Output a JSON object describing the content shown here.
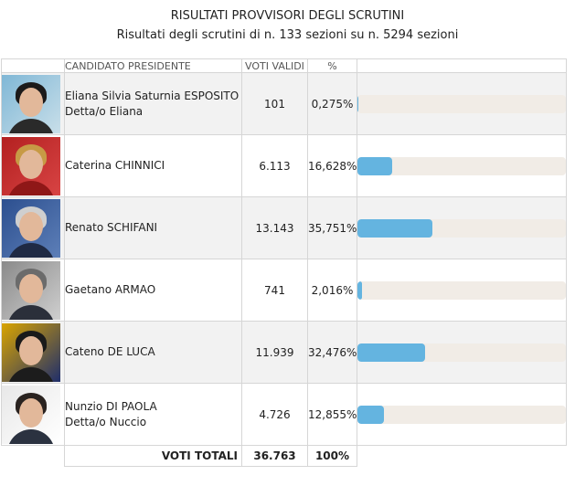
{
  "header": {
    "title": "RISULTATI PROVVISORI DEGLI SCRUTINI",
    "subtitle": "Risultati degli scrutini di n. 133 sezioni su n. 5294 sezioni"
  },
  "table": {
    "col_candidate": "CANDIDATO PRESIDENTE",
    "col_votes": "VOTI VALIDI",
    "col_pct": "%",
    "candidates": [
      {
        "name": "Eliana Silvia Saturnia ESPOSITO",
        "alias": "Detta/o Eliana",
        "votes": "101",
        "pct": "0,275%",
        "share": 0.275
      },
      {
        "name": "Caterina CHINNICI",
        "alias": "",
        "votes": "6.113",
        "pct": "16,628%",
        "share": 16.628
      },
      {
        "name": "Renato SCHIFANI",
        "alias": "",
        "votes": "13.143",
        "pct": "35,751%",
        "share": 35.751
      },
      {
        "name": "Gaetano ARMAO",
        "alias": "",
        "votes": "741",
        "pct": "2,016%",
        "share": 2.016
      },
      {
        "name": "Cateno DE LUCA",
        "alias": "",
        "votes": "11.939",
        "pct": "32,476%",
        "share": 32.476
      },
      {
        "name": "Nunzio DI PAOLA",
        "alias": "Detta/o Nuccio",
        "votes": "4.726",
        "pct": "12,855%",
        "share": 12.855
      }
    ],
    "totals": {
      "label": "VOTI TOTALI",
      "votes": "36.763",
      "pct": "100%"
    }
  },
  "colors": {
    "bar_fill": "#64b4e0",
    "bar_track": "#f1ece6"
  }
}
